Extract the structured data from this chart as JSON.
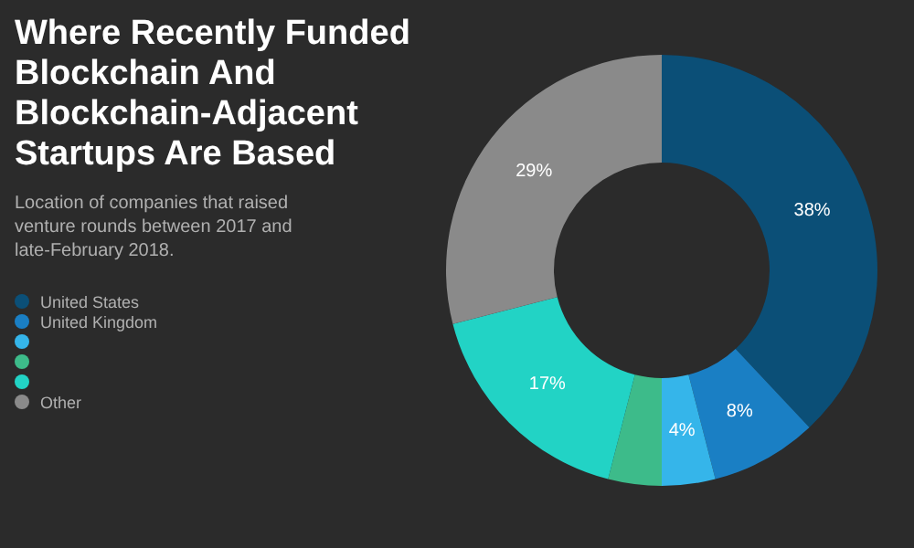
{
  "chart_data": {
    "type": "donut",
    "title": "Where Recently Funded Blockchain And Blockchain-Adjacent Startups Are Based",
    "subtitle": "Location of companies that raised venture rounds between 2017 and late-February 2018.",
    "categories": [
      "United States",
      "United Kingdom",
      null,
      null,
      null,
      "Other"
    ],
    "values": [
      38,
      8,
      4,
      4,
      17,
      29
    ],
    "colors": [
      "#0b4f77",
      "#1a7fc4",
      "#35b5ea",
      "#3dbb8a",
      "#22d3c5",
      "#8a8a8a"
    ],
    "value_labels": [
      "38%",
      "8%",
      "4%",
      null,
      "17%",
      "29%"
    ],
    "legend": "bottom left"
  }
}
